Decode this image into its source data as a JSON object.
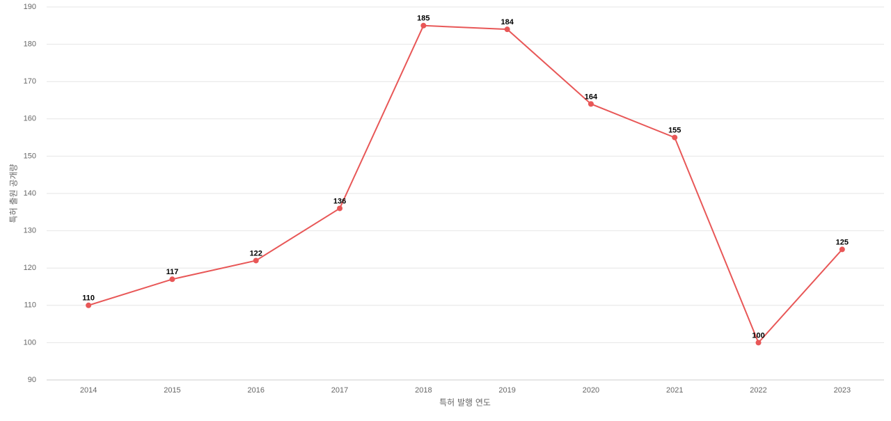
{
  "chart_data": {
    "type": "line",
    "x_label": "특허 발행 연도",
    "y_label": "특허 출원 공개량",
    "categories": [
      "2014",
      "2015",
      "2016",
      "2017",
      "2018",
      "2019",
      "2020",
      "2021",
      "2022",
      "2023"
    ],
    "values": [
      110,
      117,
      122,
      136,
      185,
      184,
      164,
      155,
      100,
      125
    ],
    "color": "#e85757",
    "ylim": [
      90,
      190
    ],
    "yticks": [
      90,
      100,
      110,
      120,
      130,
      140,
      150,
      160,
      170,
      180,
      190
    ],
    "grid": true
  }
}
